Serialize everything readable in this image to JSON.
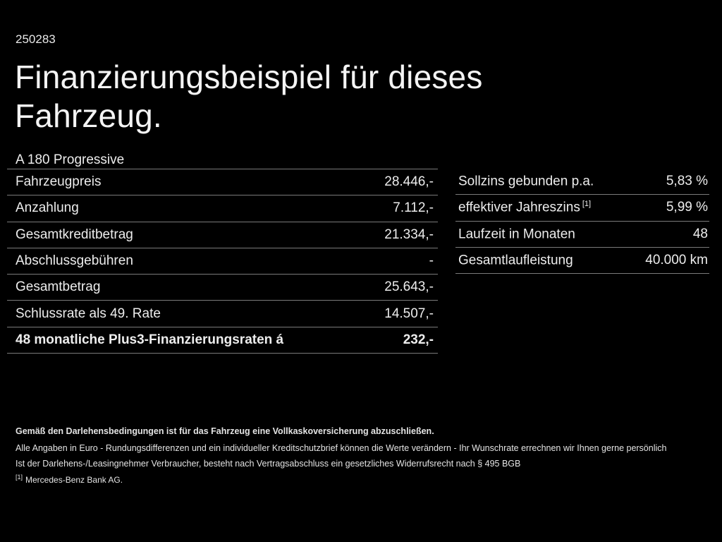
{
  "page": {
    "background": "#000000",
    "text_color": "#f0f0f0",
    "divider_color": "#7a7a7a"
  },
  "document_number": "250283",
  "title": "Finanzierungsbeispiel für dieses Fahrzeug.",
  "vehicle_model": "A 180 Progressive",
  "finance_table": {
    "rows": [
      {
        "label": "Fahrzeugpreis",
        "value": "28.446,-"
      },
      {
        "label": "Anzahlung",
        "value": "7.112,-"
      },
      {
        "label": "Gesamtkreditbetrag",
        "value": "21.334,-"
      },
      {
        "label": "Abschlussgebühren",
        "value": "-"
      },
      {
        "label": "Gesamtbetrag",
        "value": "25.643,-"
      },
      {
        "label": "Schlussrate als 49. Rate",
        "value": "14.507,-"
      },
      {
        "label": "48 monatliche Plus3-Finanzierungsraten á",
        "value": "232,-"
      }
    ]
  },
  "conditions_table": {
    "rows": [
      {
        "label": "Sollzins gebunden p.a.",
        "sup": "",
        "value": "5,83 %"
      },
      {
        "label": "effektiver Jahreszins",
        "sup": "[1]",
        "value": "5,99 %"
      },
      {
        "label": "Laufzeit in Monaten",
        "sup": "",
        "value": "48"
      },
      {
        "label": "Gesamtlaufleistung",
        "sup": "",
        "value": "40.000 km"
      }
    ]
  },
  "footnotes": {
    "insurance_note": "Gemäß den Darlehensbedingungen ist für das Fahrzeug eine Vollkaskoversicherung abzuschließen.",
    "disclaimer_line1": "Alle Angaben in Euro - Rundungsdifferenzen und ein individueller Kreditschutzbrief können die Werte verändern - Ihr Wunschrate errechnen wir Ihnen gerne persönlich",
    "disclaimer_line2": "Ist der Darlehens-/Leasingnehmer Verbraucher, besteht nach Vertragsabschluss ein gesetzliches Widerrufsrecht nach § 495 BGB",
    "reference_mark": "[1]",
    "reference_text": "Mercedes-Benz Bank AG."
  }
}
